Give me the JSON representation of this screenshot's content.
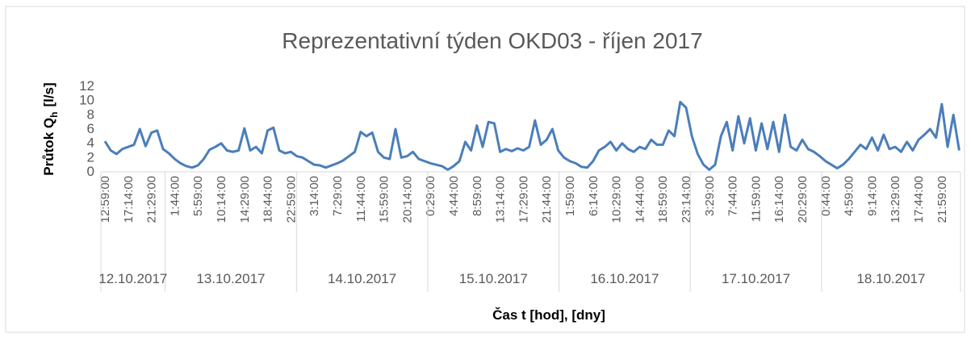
{
  "chart_data": {
    "type": "line",
    "title": "Reprezentativní týden OKD03 - říjen 2017",
    "y_label": {
      "main": "Průtok Q",
      "sub": "h",
      "unit": "[l/s]"
    },
    "x_label": "Čas t [hod], [dny]",
    "date_labels": [
      "12.10.2017",
      "13.10.2017",
      "14.10.2017",
      "15.10.2017",
      "16.10.2017",
      "17.10.2017",
      "18.10.2017"
    ],
    "categories": [
      "12:59:00",
      null,
      null,
      null,
      "17:14:00",
      null,
      null,
      null,
      "21:29:00",
      null,
      null,
      null,
      "1:44:00",
      null,
      null,
      null,
      "5:59:00",
      null,
      null,
      null,
      "10:14:00",
      null,
      null,
      null,
      "14:29:00",
      null,
      null,
      null,
      "18:44:00",
      null,
      null,
      null,
      "22:59:00",
      null,
      null,
      null,
      "3:14:00",
      null,
      null,
      null,
      "7:29:00",
      null,
      null,
      null,
      "11:44:00",
      null,
      null,
      null,
      "15:59:00",
      null,
      null,
      null,
      "20:14:00",
      null,
      null,
      null,
      "0:29:00",
      null,
      null,
      null,
      "4:44:00",
      null,
      null,
      null,
      "8:59:00",
      null,
      null,
      null,
      "13:14:00",
      null,
      null,
      null,
      "17:29:00",
      null,
      null,
      null,
      "21:44:00",
      null,
      null,
      null,
      "1:59:00",
      null,
      null,
      null,
      "6:14:00",
      null,
      null,
      null,
      "10:29:00",
      null,
      null,
      null,
      "14:44:00",
      null,
      null,
      null,
      "18:59:00",
      null,
      null,
      null,
      "23:14:00",
      null,
      null,
      null,
      "3:29:00",
      null,
      null,
      null,
      "7:44:00",
      null,
      null,
      null,
      "11:59:00",
      null,
      null,
      null,
      "16:14:00",
      null,
      null,
      null,
      "20:29:00",
      null,
      null,
      null,
      "0:44:00",
      null,
      null,
      null,
      "4:59:00",
      null,
      null,
      null,
      "9:14:00",
      null,
      null,
      null,
      "13:29:00",
      null,
      null,
      null,
      "17:44:00",
      null,
      null,
      null,
      "21:59:00",
      null,
      null,
      null
    ],
    "series": [
      {
        "name": "Průtok",
        "color": "#4a7ebb",
        "values": [
          4.3,
          3.0,
          2.5,
          3.2,
          3.5,
          3.8,
          6.0,
          3.6,
          5.5,
          5.8,
          3.2,
          2.6,
          1.8,
          1.2,
          0.8,
          0.6,
          0.9,
          1.8,
          3.1,
          3.5,
          4.0,
          3.0,
          2.8,
          3.0,
          6.1,
          3.0,
          3.5,
          2.6,
          5.8,
          6.2,
          3.0,
          2.6,
          2.8,
          2.2,
          2.0,
          1.5,
          1.0,
          0.9,
          0.6,
          0.9,
          1.2,
          1.6,
          2.2,
          2.8,
          5.6,
          5.0,
          5.5,
          2.8,
          2.0,
          1.8,
          6.0,
          2.0,
          2.2,
          2.8,
          1.8,
          1.5,
          1.2,
          1.0,
          0.8,
          0.3,
          0.8,
          1.5,
          4.2,
          3.0,
          6.5,
          3.5,
          7.0,
          6.8,
          2.8,
          3.2,
          2.9,
          3.3,
          3.0,
          3.5,
          7.2,
          3.8,
          4.5,
          6.0,
          3.0,
          2.0,
          1.5,
          1.2,
          0.7,
          0.6,
          1.5,
          3.0,
          3.5,
          4.2,
          3.0,
          4.0,
          3.2,
          2.8,
          3.5,
          3.2,
          4.5,
          3.8,
          3.8,
          5.8,
          5.0,
          9.8,
          9.0,
          5.0,
          2.5,
          1.0,
          0.3,
          1.0,
          5.0,
          7.0,
          3.0,
          7.8,
          4.0,
          7.5,
          3.0,
          6.8,
          3.2,
          7.0,
          2.8,
          8.0,
          3.5,
          3.0,
          4.5,
          3.2,
          2.8,
          2.2,
          1.5,
          1.0,
          0.5,
          1.0,
          1.8,
          2.8,
          3.8,
          3.2,
          4.8,
          3.0,
          5.2,
          3.2,
          3.5,
          2.8,
          4.2,
          3.0,
          4.5,
          5.2,
          6.0,
          4.8,
          9.5,
          3.5,
          8.0,
          3.0
        ]
      }
    ],
    "ylim": [
      0,
      12
    ],
    "yticks": [
      0,
      2,
      4,
      6,
      8,
      10,
      12
    ],
    "grid": false
  }
}
